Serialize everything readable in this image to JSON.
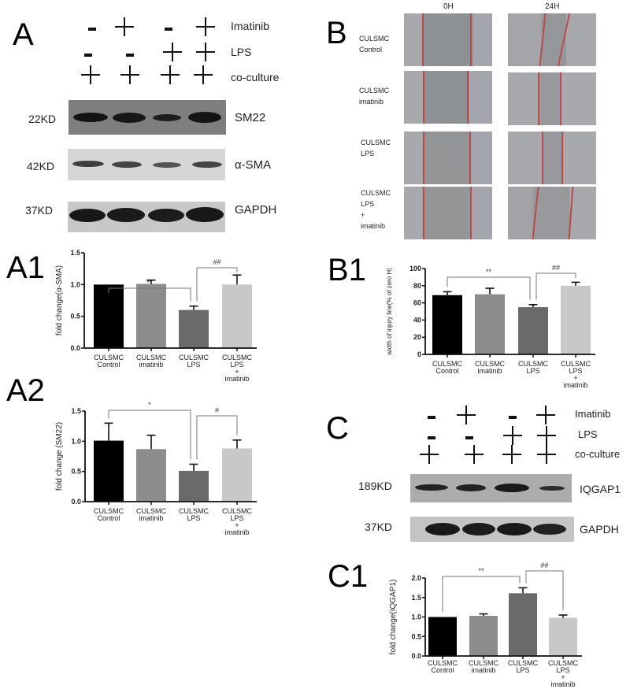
{
  "figure": {
    "panel_letters": {
      "A": "A",
      "B": "B",
      "C": "C",
      "A1": "A1",
      "A2": "A2",
      "B1": "B1",
      "C1": "C1"
    },
    "conditions": {
      "row_labels": [
        "Imatinib",
        "LPS",
        "co-culture"
      ],
      "lanes": [
        {
          "imatinib": "-",
          "lps": "-",
          "coculture": "+"
        },
        {
          "imatinib": "+",
          "lps": "-",
          "coculture": "+"
        },
        {
          "imatinib": "-",
          "lps": "+",
          "coculture": "+"
        },
        {
          "imatinib": "+",
          "lps": "+",
          "coculture": "+"
        }
      ]
    },
    "blot_A": [
      {
        "kd": "22KD",
        "protein": "SM22"
      },
      {
        "kd": "42KD",
        "protein": "α-SMA"
      },
      {
        "kd": "37KD",
        "protein": "GAPDH"
      }
    ],
    "blot_C": [
      {
        "kd": "189KD",
        "protein": "IQGAP1"
      },
      {
        "kd": "37KD",
        "protein": "GAPDH"
      }
    ],
    "scratch_B": {
      "time_labels": [
        "0H",
        "24H"
      ],
      "row_labels": [
        [
          "CULSMC",
          "Control"
        ],
        [
          "CULSMC",
          "imatinib"
        ],
        [
          "CULSMC",
          "LPS"
        ],
        [
          "CULSMC",
          "LPS",
          "+",
          "imatinib"
        ]
      ]
    },
    "colors": {
      "bar_control": "#000000",
      "bar_imatinib": "#8c8c8c",
      "bar_lps": "#6a6a6a",
      "bar_lps_imatinib": "#c8c8c8",
      "scratch_line": "#c04848"
    }
  },
  "chart_data": [
    {
      "id": "A1",
      "type": "bar",
      "categories": [
        "CULSMC Control",
        "CULSMC imatinib",
        "CULSMC LPS",
        "CULSMC LPS + imatinib"
      ],
      "category_lines": [
        [
          "CULSMC",
          "Control"
        ],
        [
          "CULSMC",
          "imatinib"
        ],
        [
          "CULSMC",
          "LPS"
        ],
        [
          "CULSMC",
          "LPS",
          "+",
          "imatinib"
        ]
      ],
      "values": [
        1.0,
        1.01,
        0.6,
        1.0
      ],
      "errors": [
        0.0,
        0.06,
        0.06,
        0.15
      ],
      "ylabel": "fold change(α-SMA)",
      "xlabel": "",
      "ylim": [
        0,
        1.5
      ],
      "yticks": [
        "0.0",
        "0.5",
        "1.0",
        "1.5"
      ],
      "annotations": [
        {
          "from": 0,
          "to": 2,
          "label": "**"
        },
        {
          "from": 2,
          "to": 3,
          "label": "##"
        }
      ]
    },
    {
      "id": "A2",
      "type": "bar",
      "categories": [
        "CULSMC Control",
        "CULSMC imatinib",
        "CULSMC LPS",
        "CULSMC LPS + imatinib"
      ],
      "category_lines": [
        [
          "CULSMC",
          "Control"
        ],
        [
          "CULSMC",
          "imatinib"
        ],
        [
          "CULSMC",
          "LPS"
        ],
        [
          "CULSMC",
          "LPS",
          "+",
          "imatinib"
        ]
      ],
      "values": [
        1.01,
        0.87,
        0.51,
        0.88
      ],
      "errors": [
        0.29,
        0.23,
        0.11,
        0.14
      ],
      "ylabel": "fold change (SM22)",
      "xlabel": "",
      "ylim": [
        0,
        1.5
      ],
      "yticks": [
        "0.0",
        "0.5",
        "1.0",
        "1.5"
      ],
      "annotations": [
        {
          "from": 0,
          "to": 2,
          "label": "*"
        },
        {
          "from": 2,
          "to": 3,
          "label": "#"
        }
      ]
    },
    {
      "id": "B1",
      "type": "bar",
      "categories": [
        "CULSMC Control",
        "CULSMC imatinib",
        "CULSMC LPS",
        "CULSMC LPS + imatinib"
      ],
      "category_lines": [
        [
          "CULSMC",
          "Control"
        ],
        [
          "CULSMC",
          "imatinib"
        ],
        [
          "CULSMC",
          "LPS"
        ],
        [
          "CULSMC",
          "LPS",
          "+",
          "imatinib"
        ]
      ],
      "values": [
        69,
        70,
        55,
        80
      ],
      "errors": [
        4,
        7,
        3,
        4
      ],
      "ylabel": "width of injury line(% of zero H)",
      "xlabel": "",
      "ylim": [
        0,
        100
      ],
      "yticks": [
        "0",
        "20",
        "40",
        "60",
        "80",
        "100"
      ],
      "annotations": [
        {
          "from": 0,
          "to": 2,
          "label": "**"
        },
        {
          "from": 2,
          "to": 3,
          "label": "##"
        }
      ]
    },
    {
      "id": "C1",
      "type": "bar",
      "categories": [
        "CULSMC Control",
        "CULSMC imatinib",
        "CULSMC LPS",
        "CULSMC LPS + imatinib"
      ],
      "category_lines": [
        [
          "CULSMC",
          "Control"
        ],
        [
          "CULSMC",
          "imatinib"
        ],
        [
          "CULSMC",
          "LPS"
        ],
        [
          "CULSMC",
          "LPS",
          "+",
          "imatinib"
        ]
      ],
      "values": [
        1.0,
        1.03,
        1.61,
        0.98
      ],
      "errors": [
        0.0,
        0.05,
        0.14,
        0.07
      ],
      "ylabel": "fold change(IQGAP1)",
      "xlabel": "",
      "ylim": [
        0,
        2.0
      ],
      "yticks": [
        "0.0",
        "0.5",
        "1.0",
        "1.5",
        "2.0"
      ],
      "annotations": [
        {
          "from": 0,
          "to": 2,
          "label": "**"
        },
        {
          "from": 2,
          "to": 3,
          "label": "##"
        }
      ]
    }
  ]
}
